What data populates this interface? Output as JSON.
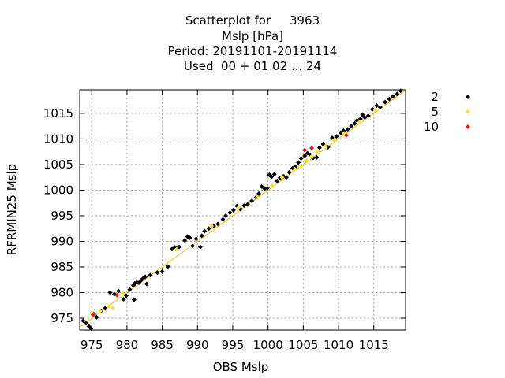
{
  "chart_data": {
    "type": "scatter",
    "title_lines": [
      "Scatterplot for     3963",
      "Mslp [hPa]",
      "Period: 20191101-20191114",
      "Used  00 + 01 02 ... 24"
    ],
    "xlabel": "OBS Mslp",
    "ylabel": "RFRMIN25 Mslp",
    "xlim": [
      973.3,
      1019.5
    ],
    "ylim": [
      972.7,
      1019.6
    ],
    "xticks": [
      975,
      980,
      985,
      990,
      995,
      1000,
      1005,
      1010,
      1015
    ],
    "yticks": [
      975,
      980,
      985,
      990,
      995,
      1000,
      1005,
      1010,
      1015
    ],
    "grid": true,
    "legend_position": "right",
    "diagonal_color": "#e6c000",
    "series": [
      {
        "name": "2",
        "color": "#000000",
        "points": [
          [
            973.8,
            974.5
          ],
          [
            974.2,
            974.0
          ],
          [
            974.6,
            973.4
          ],
          [
            974.9,
            973.0
          ],
          [
            975.3,
            975.8
          ],
          [
            975.7,
            975.2
          ],
          [
            976.3,
            976.4
          ],
          [
            976.9,
            976.9
          ],
          [
            977.6,
            980.0
          ],
          [
            978.2,
            979.7
          ],
          [
            978.8,
            980.3
          ],
          [
            979.5,
            978.7
          ],
          [
            979.9,
            979.4
          ],
          [
            980.4,
            980.6
          ],
          [
            980.9,
            981.4
          ],
          [
            981.1,
            981.8
          ],
          [
            981.4,
            982.0
          ],
          [
            981.7,
            981.9
          ],
          [
            982.0,
            982.4
          ],
          [
            982.3,
            982.8
          ],
          [
            982.6,
            983.1
          ],
          [
            981.0,
            978.6
          ],
          [
            983.3,
            983.4
          ],
          [
            982.8,
            981.7
          ],
          [
            984.3,
            983.9
          ],
          [
            985.0,
            984.1
          ],
          [
            985.8,
            985.1
          ],
          [
            986.4,
            988.5
          ],
          [
            986.8,
            988.8
          ],
          [
            987.4,
            988.9
          ],
          [
            988.2,
            990.2
          ],
          [
            988.6,
            990.9
          ],
          [
            988.9,
            990.7
          ],
          [
            989.3,
            989.1
          ],
          [
            989.8,
            990.5
          ],
          [
            990.6,
            991.1
          ],
          [
            990.4,
            988.9
          ],
          [
            991.0,
            992.0
          ],
          [
            991.6,
            992.5
          ],
          [
            992.3,
            993.0
          ],
          [
            992.9,
            993.4
          ],
          [
            993.6,
            994.3
          ],
          [
            994.0,
            995.0
          ],
          [
            994.6,
            995.6
          ],
          [
            995.1,
            996.1
          ],
          [
            995.6,
            996.9
          ],
          [
            996.1,
            996.3
          ],
          [
            996.6,
            997.0
          ],
          [
            997.1,
            997.2
          ],
          [
            997.7,
            997.9
          ],
          [
            998.3,
            998.6
          ],
          [
            998.7,
            999.3
          ],
          [
            999.1,
            1000.7
          ],
          [
            999.5,
            1000.3
          ],
          [
            999.9,
            1000.4
          ],
          [
            1000.2,
            1003.0
          ],
          [
            1000.5,
            1002.6
          ],
          [
            1000.9,
            1003.1
          ],
          [
            1001.3,
            1001.8
          ],
          [
            1001.7,
            1002.4
          ],
          [
            1002.2,
            1002.7
          ],
          [
            1002.6,
            1002.5
          ],
          [
            1003.0,
            1003.5
          ],
          [
            1003.5,
            1004.3
          ],
          [
            1003.9,
            1004.6
          ],
          [
            1004.3,
            1005.4
          ],
          [
            1004.7,
            1006.2
          ],
          [
            1005.2,
            1006.7
          ],
          [
            1005.6,
            1007.2
          ],
          [
            1006.0,
            1006.9
          ],
          [
            1006.4,
            1006.3
          ],
          [
            1006.9,
            1006.4
          ],
          [
            1007.3,
            1008.3
          ],
          [
            1007.8,
            1009.0
          ],
          [
            1008.5,
            1008.4
          ],
          [
            1009.1,
            1010.2
          ],
          [
            1009.7,
            1010.5
          ],
          [
            1010.3,
            1011.2
          ],
          [
            1010.7,
            1011.6
          ],
          [
            1011.3,
            1011.9
          ],
          [
            1011.8,
            1012.5
          ],
          [
            1012.3,
            1013.0
          ],
          [
            1012.6,
            1013.6
          ],
          [
            1013.1,
            1013.9
          ],
          [
            1013.4,
            1014.7
          ],
          [
            1013.7,
            1014.2
          ],
          [
            1014.2,
            1014.5
          ],
          [
            1014.8,
            1015.8
          ],
          [
            1015.4,
            1016.5
          ],
          [
            1015.9,
            1016.2
          ],
          [
            1016.6,
            1017.2
          ],
          [
            1017.2,
            1017.8
          ],
          [
            1017.7,
            1018.3
          ],
          [
            1018.3,
            1018.8
          ],
          [
            1018.8,
            1019.4
          ]
        ]
      },
      {
        "name": "5",
        "color": "#f0e040",
        "points": [
          [
            975.0,
            976.0
          ],
          [
            976.2,
            976.4
          ],
          [
            977.4,
            977.3
          ],
          [
            978.0,
            976.9
          ],
          [
            979.4,
            979.8
          ],
          [
            987.0,
            988.4
          ],
          [
            992.0,
            993.0
          ],
          [
            995.8,
            996.6
          ],
          [
            998.5,
            998.6
          ],
          [
            1000.6,
            1000.9
          ],
          [
            1002.0,
            1002.5
          ],
          [
            1003.8,
            1004.1
          ],
          [
            1004.6,
            1004.6
          ],
          [
            1005.4,
            1005.9
          ],
          [
            1006.2,
            1006.6
          ],
          [
            1007.0,
            1007.6
          ],
          [
            1008.2,
            1008.6
          ],
          [
            1009.4,
            1009.8
          ],
          [
            1010.8,
            1011.1
          ],
          [
            1013.0,
            1013.3
          ],
          [
            1015.2,
            1015.6
          ]
        ]
      },
      {
        "name": "10",
        "color": "#e02020",
        "points": [
          [
            975.2,
            975.7
          ],
          [
            978.6,
            979.5
          ],
          [
            1005.2,
            1007.8
          ],
          [
            1006.2,
            1008.2
          ],
          [
            1011.1,
            1010.7
          ]
        ]
      }
    ]
  }
}
